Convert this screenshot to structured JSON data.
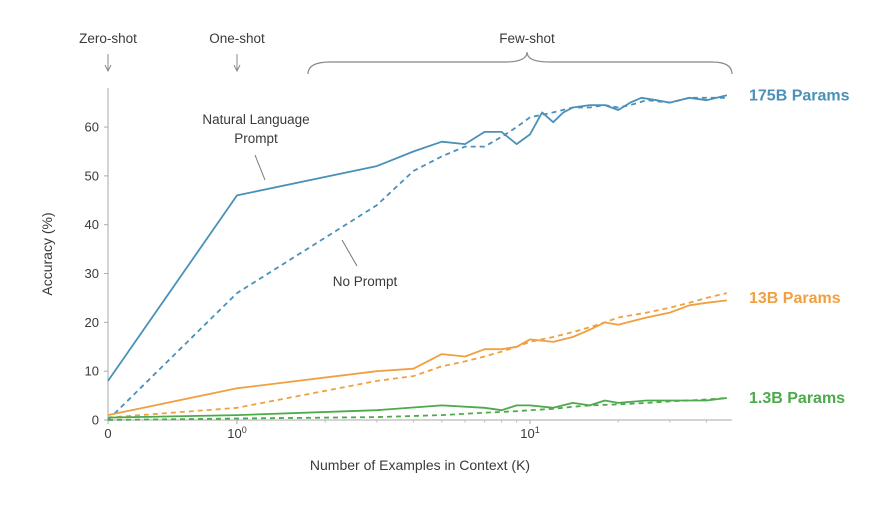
{
  "chart_data": {
    "type": "line",
    "xlabel": "Number of Examples in Context  (K)",
    "ylabel": "Accuracy (%)",
    "x_scale": "symlog",
    "xlim": [
      0,
      47
    ],
    "ylim": [
      0,
      68
    ],
    "grid": false,
    "x_ticks": [
      {
        "value": 0,
        "label": "0"
      },
      {
        "value": 1,
        "label": "10",
        "exp": "0"
      },
      {
        "value": 10,
        "label": "10",
        "exp": "1"
      }
    ],
    "y_ticks": [
      0,
      10,
      20,
      30,
      40,
      50,
      60
    ],
    "regime_labels": {
      "zero_shot": "Zero-shot",
      "one_shot": "One-shot",
      "few_shot": "Few-shot"
    },
    "annotations": {
      "natural_language_prompt": [
        "Natural Language",
        "Prompt"
      ],
      "no_prompt": "No Prompt"
    },
    "series": [
      {
        "name": "175B Params",
        "color": "#4a90b8",
        "style": "solid",
        "x": [
          0,
          1,
          3,
          4,
          5,
          6,
          7,
          8,
          9,
          10,
          11,
          12,
          13,
          14,
          16,
          18,
          20,
          22,
          24,
          27,
          30,
          35,
          40,
          47
        ],
        "values": [
          8,
          46,
          52,
          55,
          57,
          56.5,
          59,
          59,
          56.5,
          58.5,
          63,
          61,
          63,
          64,
          64.5,
          64.5,
          63.5,
          65,
          66,
          65.5,
          65,
          66,
          65.5,
          66.5
        ]
      },
      {
        "name": "175B Params",
        "color": "#4a90b8",
        "style": "dashed",
        "x": [
          0,
          1,
          3,
          4,
          5,
          6,
          7,
          8,
          9,
          10,
          12,
          14,
          16,
          18,
          20,
          22,
          25,
          30,
          35,
          40,
          47
        ],
        "values": [
          0,
          26,
          44,
          51,
          54,
          56,
          56,
          58,
          60,
          62,
          63,
          64,
          64,
          64.5,
          64,
          64.5,
          65.5,
          65,
          66,
          66,
          66
        ]
      },
      {
        "name": "13B Params",
        "color": "#f0a040",
        "style": "solid",
        "x": [
          0,
          1,
          3,
          4,
          5,
          6,
          7,
          8,
          9,
          10,
          12,
          14,
          16,
          18,
          20,
          25,
          30,
          35,
          40,
          47
        ],
        "values": [
          1,
          6.5,
          10,
          10.5,
          13.5,
          13,
          14.5,
          14.5,
          15,
          16.5,
          16,
          17,
          18.5,
          20,
          19.5,
          21,
          22,
          23.5,
          24,
          24.5
        ]
      },
      {
        "name": "13B Params",
        "color": "#f0a040",
        "style": "dashed",
        "x": [
          0,
          1,
          3,
          4,
          5,
          6,
          7,
          8,
          9,
          10,
          12,
          14,
          16,
          18,
          20,
          25,
          30,
          35,
          40,
          47
        ],
        "values": [
          0.5,
          2.5,
          8,
          9,
          11,
          12,
          13,
          14,
          15,
          16,
          17,
          18,
          19,
          20,
          21,
          22,
          23,
          24,
          25,
          26
        ]
      },
      {
        "name": "1.3B Params",
        "color": "#4caa4c",
        "style": "solid",
        "x": [
          0,
          1,
          3,
          5,
          7,
          8,
          9,
          10,
          12,
          14,
          16,
          18,
          20,
          25,
          30,
          35,
          40,
          47
        ],
        "values": [
          0.5,
          1,
          2,
          3,
          2.5,
          2,
          3,
          3,
          2.5,
          3.5,
          3,
          4,
          3.5,
          4,
          4,
          4,
          4,
          4.5
        ]
      },
      {
        "name": "1.3B Params",
        "color": "#4caa4c",
        "style": "dashed",
        "x": [
          0,
          1,
          3,
          5,
          7,
          9,
          10,
          12,
          14,
          16,
          20,
          25,
          30,
          40,
          47
        ],
        "values": [
          0,
          0.3,
          0.6,
          1,
          1.5,
          1.8,
          2,
          2.3,
          2.7,
          3,
          3.2,
          3.5,
          3.8,
          4.2,
          4.5
        ]
      }
    ],
    "series_labels": [
      {
        "text": "175B Params",
        "color": "#4a90b8",
        "y": 66.5
      },
      {
        "text": "13B Params",
        "color": "#f0a040",
        "y": 25
      },
      {
        "text": "1.3B Params",
        "color": "#4caa4c",
        "y": 4.5
      }
    ]
  }
}
